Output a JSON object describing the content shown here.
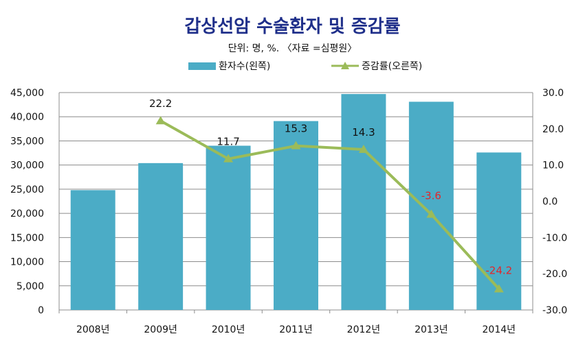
{
  "chart_data": {
    "type": "bar+line",
    "title": "갑상선암 수술환자 및 증감률",
    "subtitle": "단위: 명, %. 〈자료 =심평원〉",
    "categories": [
      "2008년",
      "2009년",
      "2010년",
      "2011년",
      "2012년",
      "2013년",
      "2014년"
    ],
    "series": [
      {
        "name": "환자수(왼쪽)",
        "type": "bar",
        "axis": "left",
        "color": "#4bacc6",
        "values": [
          24800,
          30400,
          34000,
          39100,
          44700,
          43100,
          32600
        ]
      },
      {
        "name": "증감률(오른쪽)",
        "type": "line",
        "axis": "right",
        "color": "#9bbb59",
        "values": [
          null,
          22.2,
          11.7,
          15.3,
          14.3,
          -3.6,
          -24.2
        ],
        "data_labels": [
          "",
          "22.2",
          "11.7",
          "15.3",
          "14.3",
          "-3.6",
          "-24.2"
        ],
        "negative_label_color": "#e3262b"
      }
    ],
    "y_left": {
      "range": [
        0,
        45000
      ],
      "ticks": [
        "0",
        "5,000",
        "10,000",
        "15,000",
        "20,000",
        "25,000",
        "30,000",
        "35,000",
        "40,000",
        "45,000"
      ]
    },
    "y_right": {
      "range": [
        -30,
        30
      ],
      "ticks": [
        "-30.0",
        "-20.0",
        "-10.0",
        "0.0",
        "10.0",
        "20.0",
        "30.0"
      ]
    },
    "grid": true,
    "legend_position": "top"
  }
}
